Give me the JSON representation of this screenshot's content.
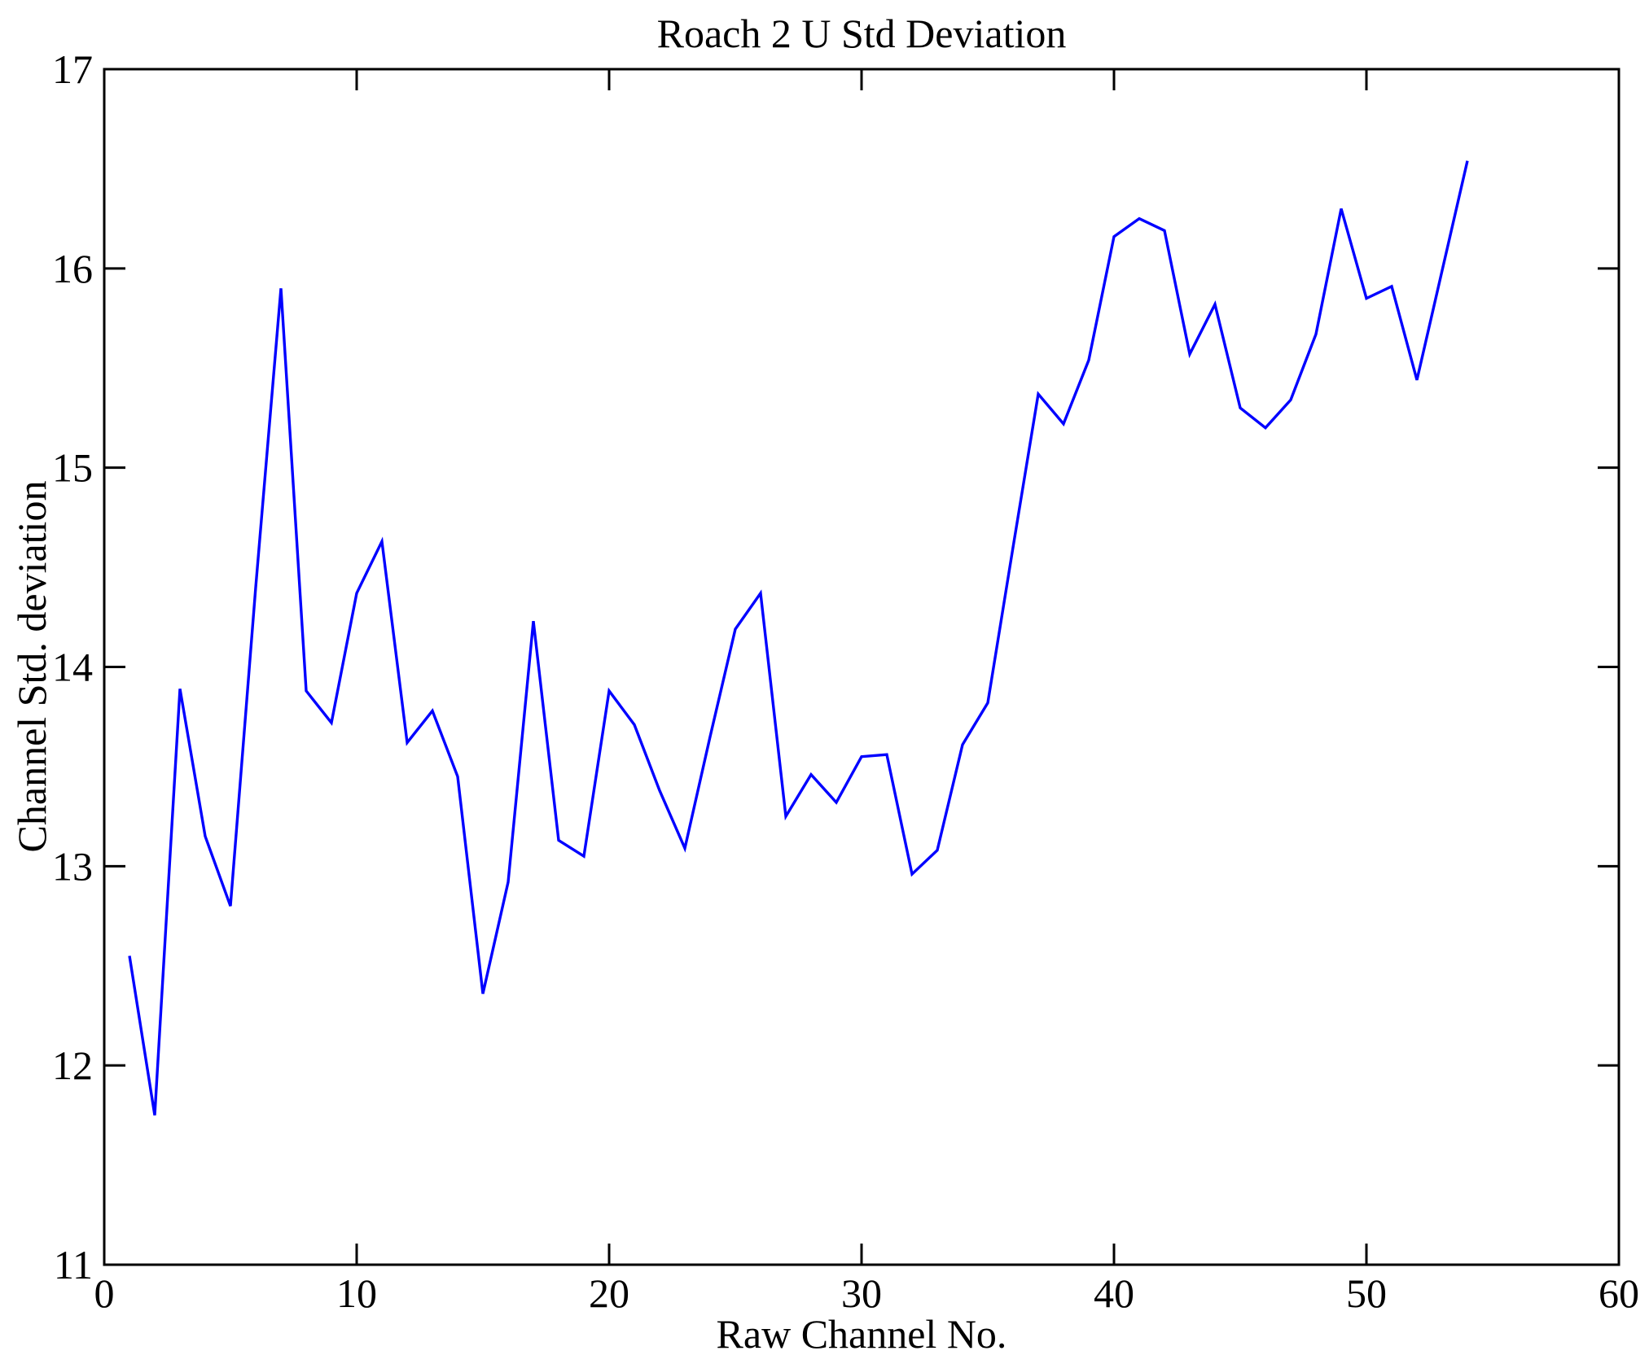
{
  "figure": {
    "title": "Roach 2 U Std Deviation",
    "xlabel": "Raw Channel No.",
    "ylabel": "Channel Std. deviation"
  },
  "chart_data": {
    "type": "line",
    "title": "Roach 2 U Std Deviation",
    "xlabel": "Raw Channel No.",
    "ylabel": "Channel Std. deviation",
    "xlim": [
      0,
      60
    ],
    "ylim": [
      11,
      17
    ],
    "x_ticks": [
      0,
      10,
      20,
      30,
      40,
      50,
      60
    ],
    "y_ticks": [
      11,
      12,
      13,
      14,
      15,
      16,
      17
    ],
    "grid": false,
    "legend": null,
    "line_color": "#0000ff",
    "axis_color": "#000000",
    "background": "#ffffff",
    "x": [
      1,
      2,
      3,
      4,
      5,
      6,
      7,
      8,
      9,
      10,
      11,
      12,
      13,
      14,
      15,
      16,
      17,
      18,
      19,
      20,
      21,
      22,
      23,
      24,
      25,
      26,
      27,
      28,
      29,
      30,
      31,
      32,
      33,
      34,
      35,
      36,
      37,
      38,
      39,
      40,
      41,
      42,
      43,
      44,
      45,
      46,
      47,
      48,
      49,
      50,
      51,
      52,
      53,
      54
    ],
    "values": [
      12.55,
      11.75,
      13.89,
      13.15,
      12.8,
      14.4,
      15.9,
      13.88,
      13.72,
      14.37,
      14.63,
      13.62,
      13.78,
      13.45,
      12.36,
      12.92,
      14.23,
      13.13,
      13.05,
      13.88,
      13.71,
      13.38,
      13.09,
      13.65,
      14.19,
      14.37,
      13.25,
      13.46,
      13.32,
      13.55,
      13.56,
      12.96,
      13.08,
      13.61,
      13.82,
      14.6,
      15.37,
      15.22,
      15.54,
      16.16,
      16.25,
      16.19,
      15.57,
      15.82,
      15.3,
      15.2,
      15.34,
      15.67,
      16.3,
      15.85,
      15.91,
      15.44,
      15.99,
      16.54
    ]
  }
}
